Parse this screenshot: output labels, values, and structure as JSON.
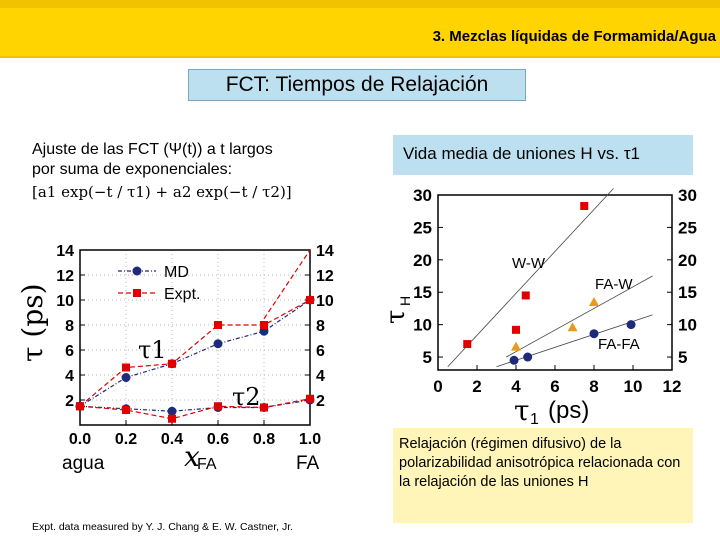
{
  "header": {
    "section_title": "3. Mezclas líquidas de Formamida/Agua"
  },
  "title": "FCT: Tiempos de Relajación",
  "left": {
    "line1": "Ajuste de las FCT (Ψ(t)) a t largos",
    "line2": "por suma de exponenciales:",
    "formula": "[a1 exp(−t / τ1) + a2 exp(−t / τ2)]"
  },
  "right": {
    "box_label": "Vida media de uniones H vs. τ1"
  },
  "note": "Relajación (régimen difusivo) de la polarizabilidad anisotrópica relacionada con la relajación de las uniones H",
  "footer": "Expt. data measured by Y. J. Chang & E. W. Castner, Jr.",
  "chart_data": [
    {
      "type": "line",
      "xlabel": "xFA",
      "ylabel": "τ (ps)",
      "xlim": [
        0.0,
        1.0
      ],
      "ylim": [
        0,
        14
      ],
      "xticks": [
        "0.0",
        "0.2",
        "0.4",
        "0.6",
        "0.8",
        "1.0"
      ],
      "yticks_left": [
        "2",
        "4",
        "6",
        "8",
        "10",
        "12",
        "14"
      ],
      "yticks_right": [
        "2",
        "4",
        "6",
        "8",
        "10",
        "12",
        "14"
      ],
      "y_axis_symbol": "τ",
      "x_axis_symbol": "x",
      "x_axis_subscript": "FA",
      "x_end_labels": {
        "left": "agua",
        "right": "FA"
      },
      "curve_labels": {
        "tau1": "τ1",
        "tau2": "τ2"
      },
      "legend": [
        "MD",
        "Expt."
      ],
      "x": [
        0.0,
        0.2,
        0.4,
        0.6,
        0.8,
        1.0
      ],
      "series": [
        {
          "name": "MD τ1",
          "values": [
            1.5,
            3.8,
            4.9,
            6.5,
            7.5,
            10.0
          ],
          "color": "#1f2a7a",
          "marker": "circle"
        },
        {
          "name": "Expt. τ1",
          "values": [
            1.5,
            4.6,
            4.9,
            8.0,
            8.0,
            10.0
          ],
          "color": "#e00000",
          "marker": "square"
        },
        {
          "name": "MD τ2",
          "values": [
            1.5,
            1.3,
            1.1,
            1.4,
            1.4,
            2.0
          ],
          "color": "#1f2a7a",
          "marker": "circle"
        },
        {
          "name": "Expt. τ2",
          "values": [
            1.5,
            1.2,
            0.5,
            1.5,
            1.4,
            2.1
          ],
          "color": "#e00000",
          "marker": "square"
        }
      ],
      "dashed_trend_upper": {
        "x": [
          0.8,
          1.0
        ],
        "values": [
          8.5,
          14.0
        ],
        "color": "#e00000"
      }
    },
    {
      "type": "scatter",
      "xlabel": "τ1 (ps)",
      "ylabel": "τH (ps)",
      "xlim": [
        0,
        12
      ],
      "ylim": [
        3,
        30
      ],
      "xticks": [
        "0",
        "2",
        "4",
        "6",
        "8",
        "10",
        "12"
      ],
      "yticks_left": [
        "5",
        "10",
        "15",
        "20",
        "25",
        "30"
      ],
      "yticks_right": [
        "5",
        "10",
        "15",
        "20",
        "25",
        "30"
      ],
      "x_axis_symbol": "τ",
      "x_axis_subscript": "1",
      "x_axis_unit": "(ps)",
      "y_axis_symbol": "τ",
      "y_axis_subscript": "H",
      "series": [
        {
          "name": "W-W",
          "x": [
            1.5,
            4.0,
            4.5,
            7.5
          ],
          "y": [
            7.0,
            9.2,
            14.5,
            28.3
          ],
          "color": "#e00000",
          "marker": "square"
        },
        {
          "name": "FA-W",
          "x": [
            4.0,
            6.9,
            8.0
          ],
          "y": [
            6.6,
            9.6,
            13.5
          ],
          "color": "#e89a1a",
          "marker": "triangle"
        },
        {
          "name": "FA-FA",
          "x": [
            3.9,
            4.6,
            8.0,
            9.9
          ],
          "y": [
            4.5,
            5.0,
            8.6,
            10.0
          ],
          "color": "#1f2a7a",
          "marker": "circle"
        }
      ],
      "fit_lines": [
        {
          "name": "W-W fit",
          "x": [
            0.5,
            9.0
          ],
          "y": [
            3.5,
            31.0
          ]
        },
        {
          "name": "FA-W fit",
          "x": [
            3.5,
            11.0
          ],
          "y": [
            5.0,
            17.5
          ]
        },
        {
          "name": "FA-FA fit",
          "x": [
            3.0,
            11.0
          ],
          "y": [
            3.5,
            11.5
          ]
        }
      ],
      "annotations": [
        "W-W",
        "FA-W",
        "FA-FA"
      ]
    }
  ]
}
